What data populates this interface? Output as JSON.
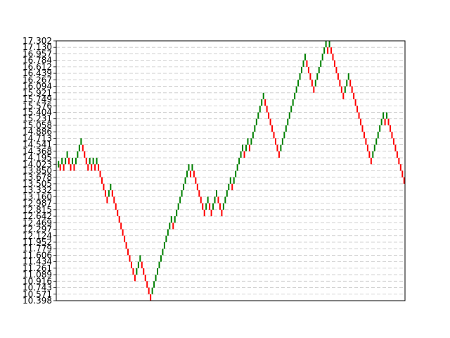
{
  "chart_data": {
    "type": "renko",
    "title": "",
    "xlabel": "",
    "ylabel": "",
    "ylim": [
      10.398,
      17.302
    ],
    "brick_size": 0.1726,
    "y_ticks": [
      "10.398",
      "10.571",
      "10.743",
      "10.916",
      "11.089",
      "11.261",
      "11.434",
      "11.606",
      "11.779",
      "11.952",
      "12.124",
      "12.297",
      "12.469",
      "12.642",
      "12.815",
      "12.987",
      "13.160",
      "13.332",
      "13.505",
      "13.678",
      "13.850",
      "14.023",
      "14.195",
      "14.368",
      "14.541",
      "14.713",
      "14.886",
      "15.058",
      "15.231",
      "15.404",
      "15.576",
      "15.749",
      "15.921",
      "16.094",
      "16.267",
      "16.439",
      "16.612",
      "16.784",
      "16.957",
      "17.130",
      "17.302"
    ],
    "grid": true,
    "colors": {
      "up": "#008000",
      "down": "#ff0000",
      "grid": "#c8c8c8",
      "frame": "#000000"
    },
    "series": [
      {
        "values": [
          14.023,
          13.937,
          14.109,
          13.937,
          14.109,
          14.282,
          14.109,
          13.937,
          14.109,
          13.937,
          14.109,
          14.282,
          14.454,
          14.627,
          14.454,
          14.282,
          14.109,
          13.937,
          14.109,
          13.937,
          14.109,
          13.937,
          14.109,
          13.937,
          13.764,
          13.592,
          13.419,
          13.246,
          13.074,
          13.246,
          13.419,
          13.246,
          13.074,
          12.901,
          12.728,
          12.556,
          12.383,
          12.211,
          12.038,
          11.865,
          11.693,
          11.52,
          11.347,
          11.175,
          11.002,
          11.175,
          11.347,
          11.52,
          11.347,
          11.175,
          11.002,
          10.829,
          10.657,
          10.484,
          10.657,
          10.829,
          11.002,
          11.175,
          11.347,
          11.52,
          11.693,
          11.865,
          12.038,
          12.211,
          12.383,
          12.556,
          12.383,
          12.556,
          12.728,
          12.901,
          13.074,
          13.246,
          13.419,
          13.592,
          13.764,
          13.937,
          13.764,
          13.937,
          13.764,
          13.592,
          13.419,
          13.246,
          13.074,
          12.901,
          12.728,
          12.901,
          13.074,
          12.901,
          12.728,
          12.901,
          13.074,
          13.246,
          13.074,
          12.901,
          12.728,
          12.901,
          13.074,
          13.246,
          13.419,
          13.592,
          13.419,
          13.592,
          13.764,
          13.937,
          14.109,
          14.282,
          14.454,
          14.282,
          14.454,
          14.627,
          14.454,
          14.627,
          14.799,
          14.972,
          15.145,
          15.317,
          15.49,
          15.662,
          15.835,
          15.662,
          15.49,
          15.317,
          15.145,
          14.972,
          14.799,
          14.627,
          14.454,
          14.282,
          14.454,
          14.627,
          14.799,
          14.972,
          15.145,
          15.317,
          15.49,
          15.662,
          15.835,
          16.008,
          16.18,
          16.353,
          16.525,
          16.698,
          16.871,
          16.698,
          16.525,
          16.353,
          16.18,
          16.008,
          16.18,
          16.353,
          16.525,
          16.698,
          16.871,
          17.043,
          17.216,
          17.043,
          17.216,
          17.043,
          16.871,
          16.698,
          16.525,
          16.353,
          16.18,
          16.008,
          15.835,
          16.008,
          16.18,
          16.353,
          16.18,
          16.008,
          15.835,
          15.662,
          15.49,
          15.317,
          15.145,
          14.972,
          14.799,
          14.627,
          14.454,
          14.282,
          14.109,
          14.282,
          14.454,
          14.627,
          14.799,
          14.972,
          15.145,
          15.317,
          15.145,
          15.317,
          15.145,
          14.972,
          14.799,
          14.627,
          14.454,
          14.282,
          14.109,
          13.937,
          13.764,
          13.592
        ]
      }
    ]
  }
}
